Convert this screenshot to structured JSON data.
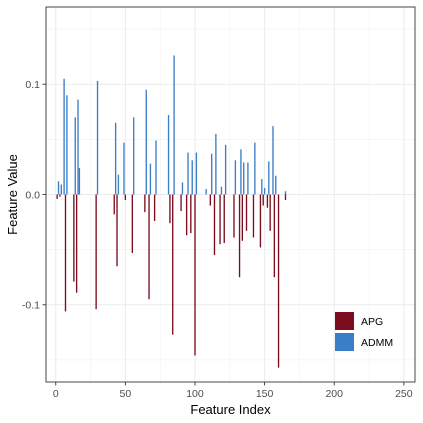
{
  "chart_data": {
    "type": "bar",
    "xlabel": "Feature Index",
    "ylabel": "Feature Value",
    "xlim": [
      -7,
      258
    ],
    "ylim": [
      -0.17,
      0.17
    ],
    "x_ticks": [
      0,
      50,
      100,
      150,
      200,
      250
    ],
    "y_ticks": [
      -0.1,
      0.0,
      0.1
    ],
    "y_tick_labels": [
      "-0.1",
      "0.0",
      "0.1"
    ],
    "grid": true,
    "legend_position": "bottom-right",
    "series": [
      {
        "name": "APG",
        "color": "#7b0d1e",
        "direction": "down",
        "x": [
          1,
          3,
          7,
          13,
          15,
          29,
          42,
          44,
          50,
          55,
          64,
          67,
          71,
          82,
          84,
          90,
          94,
          97,
          100,
          111,
          114,
          118,
          121,
          128,
          132,
          134,
          137,
          142,
          147,
          149,
          152,
          154,
          157,
          160,
          165
        ],
        "values": [
          0.004,
          0.002,
          0.106,
          0.079,
          0.089,
          0.104,
          0.018,
          0.065,
          0.005,
          0.053,
          0.016,
          0.095,
          0.024,
          0.026,
          0.127,
          0.015,
          0.037,
          0.035,
          0.146,
          0.01,
          0.055,
          0.045,
          0.044,
          0.039,
          0.075,
          0.042,
          0.033,
          0.039,
          0.048,
          0.01,
          0.012,
          0.033,
          0.075,
          0.157,
          0.005
        ]
      },
      {
        "name": "ADMM",
        "color": "#3a7ec8",
        "direction": "up",
        "x": [
          2,
          4,
          6,
          8,
          14,
          16,
          17,
          30,
          43,
          45,
          49,
          56,
          65,
          68,
          72,
          81,
          85,
          91,
          95,
          98,
          101,
          108,
          112,
          115,
          119,
          122,
          129,
          133,
          135,
          138,
          143,
          148,
          150,
          153,
          156,
          158,
          165
        ],
        "values": [
          0.012,
          0.009,
          0.105,
          0.09,
          0.07,
          0.086,
          0.024,
          0.103,
          0.065,
          0.018,
          0.047,
          0.07,
          0.095,
          0.028,
          0.049,
          0.072,
          0.126,
          0.011,
          0.038,
          0.031,
          0.038,
          0.005,
          0.037,
          0.055,
          0.007,
          0.045,
          0.031,
          0.041,
          0.029,
          0.029,
          0.047,
          0.014,
          0.006,
          0.03,
          0.062,
          0.017,
          0.003
        ]
      }
    ]
  },
  "legend": {
    "items": [
      {
        "label": "APG",
        "color": "#7b0d1e"
      },
      {
        "label": "ADMM",
        "color": "#3a7ec8"
      }
    ]
  }
}
